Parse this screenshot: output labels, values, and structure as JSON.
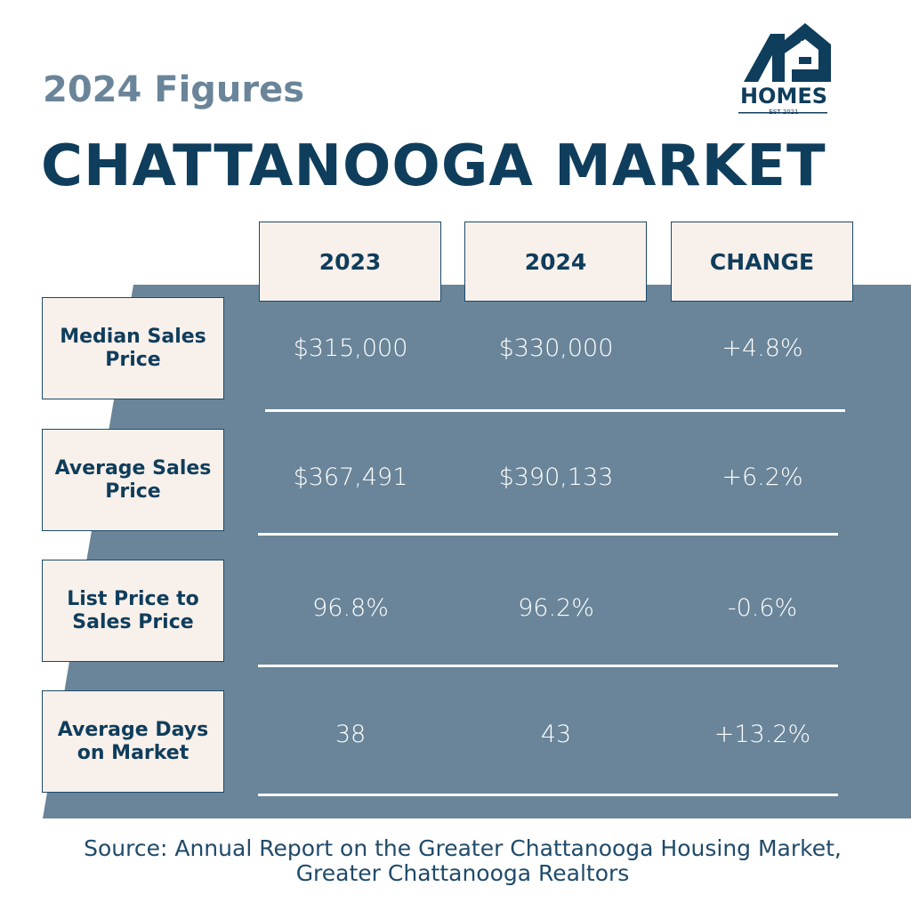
{
  "header": {
    "subtitle": "2024 Figures",
    "title": "CHATTANOOGA MARKET",
    "logo": {
      "name": "HOMES",
      "tagline": "EST 2021"
    }
  },
  "table": {
    "columns": [
      "2023",
      "2024",
      "CHANGE"
    ],
    "rows": [
      {
        "label": "Median Sales Price",
        "cells": [
          "$315,000",
          "$330,000",
          "+4.8%"
        ]
      },
      {
        "label": "Average Sales Price",
        "cells": [
          "$367,491",
          "$390,133",
          "+6.2%"
        ]
      },
      {
        "label": "List Price to Sales Price",
        "cells": [
          "96.8%",
          "96.2%",
          "-0.6%"
        ]
      },
      {
        "label": "Average Days on Market",
        "cells": [
          "38",
          "43",
          "+13.2%"
        ]
      }
    ]
  },
  "source": "Source: Annual Report on the Greater Chattanooga Housing Market, Greater Chattanooga Realtors"
}
